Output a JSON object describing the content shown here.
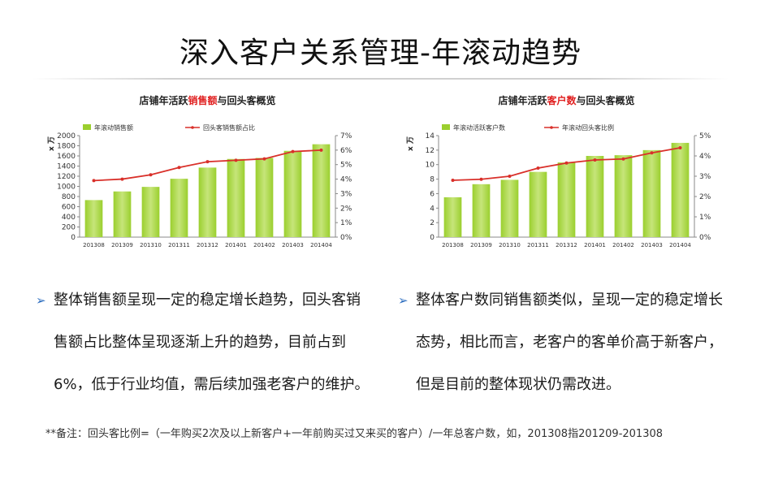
{
  "page": {
    "title": "深入客户关系管理-年滚动趋势"
  },
  "colors": {
    "bar": "#9bcf2e",
    "bar_light": "#c6e57a",
    "line": "#d9302a",
    "axis": "#888888",
    "highlight": "#e02020"
  },
  "chart_data": [
    {
      "type": "bar",
      "title_parts": [
        "店铺年活跃",
        "销售额",
        "与回头客概览"
      ],
      "ylabel": "x 万",
      "categories": [
        "201308",
        "201309",
        "201310",
        "201311",
        "201312",
        "201401",
        "201402",
        "201403",
        "201404"
      ],
      "series": [
        {
          "name": "年滚动销售额",
          "type": "bar",
          "axis": "left",
          "values": [
            730,
            900,
            990,
            1150,
            1370,
            1540,
            1560,
            1700,
            1830
          ]
        },
        {
          "name": "回头客销售额占比",
          "type": "line",
          "axis": "right",
          "values": [
            3.9,
            4.0,
            4.3,
            4.8,
            5.2,
            5.3,
            5.4,
            5.9,
            6.0
          ]
        }
      ],
      "ylim": [
        0,
        2000
      ],
      "yticks": [
        "0",
        "200",
        "400",
        "600",
        "800",
        "1000",
        "1200",
        "1400",
        "1600",
        "1800",
        "2000"
      ],
      "y2lim": [
        0,
        7
      ],
      "y2ticks": [
        "0%",
        "1%",
        "2%",
        "3%",
        "4%",
        "5%",
        "6%",
        "7%"
      ],
      "legend_position": "top"
    },
    {
      "type": "bar",
      "title_parts": [
        "店铺年活跃",
        "客户数",
        "与回头客概览"
      ],
      "ylabel": "x 万",
      "categories": [
        "201308",
        "201309",
        "201310",
        "201311",
        "201312",
        "201401",
        "201402",
        "201403",
        "201404"
      ],
      "series": [
        {
          "name": "年滚动活跃客户数",
          "type": "bar",
          "axis": "left",
          "values": [
            5.5,
            7.3,
            7.9,
            9.0,
            10.3,
            11.2,
            11.3,
            12.0,
            13.0
          ]
        },
        {
          "name": "年滚动回头客比例",
          "type": "line",
          "axis": "right",
          "values": [
            2.8,
            2.85,
            3.0,
            3.4,
            3.65,
            3.8,
            3.85,
            4.15,
            4.4
          ]
        }
      ],
      "ylim": [
        0,
        14
      ],
      "yticks": [
        "0",
        "2",
        "4",
        "6",
        "8",
        "10",
        "12",
        "14"
      ],
      "y2lim": [
        0,
        5
      ],
      "y2ticks": [
        "0%",
        "1%",
        "2%",
        "3%",
        "4%",
        "5%"
      ],
      "legend_position": "top"
    }
  ],
  "bullets": {
    "arrow": "➢",
    "left": "整体销售额呈现一定的稳定增长趋势，回头客销售额占比整体呈现逐渐上升的趋势，目前占到6%，低于行业均值，需后续加强老客户的维护。",
    "right": "整体客户数同销售额类似，呈现一定的稳定增长态势，相比而言，老客户的客单价高于新客户，但是目前的整体现状仍需改进。"
  },
  "footnote": "**备注：回头客比例=（一年购买2次及以上新客户+一年前购买过又来买的客户）/一年总客户数，如，201308指201209-201308"
}
